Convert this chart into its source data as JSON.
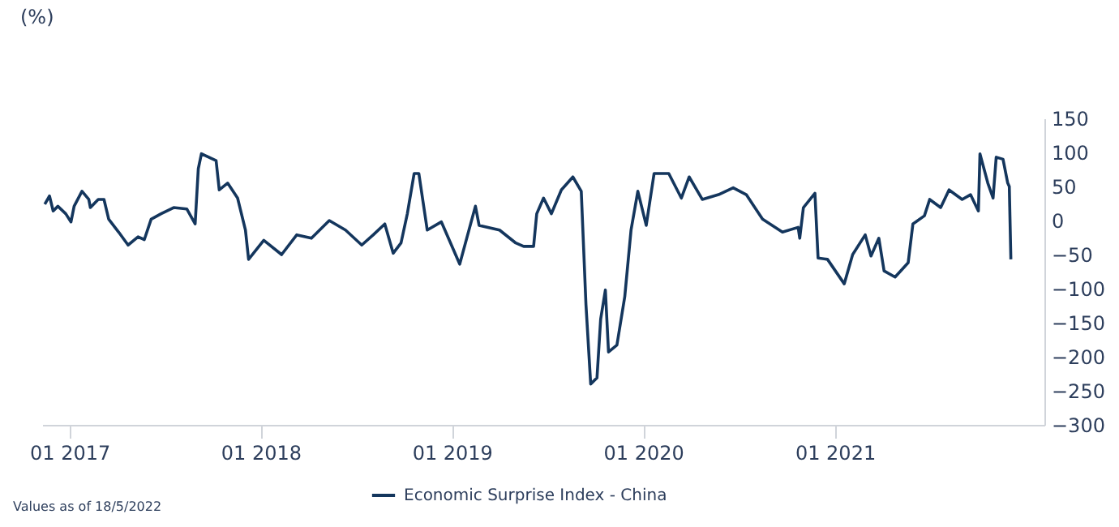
{
  "chart_data": {
    "type": "line",
    "ylabel": "(%)",
    "legend": "bottom",
    "grid": false,
    "annotations": [
      "Values as of 18/5/2022"
    ],
    "xlim": [
      "2016-11-10",
      "2022-02-05"
    ],
    "xticks": [
      {
        "value": "2017-01-01",
        "label": "01 2017"
      },
      {
        "value": "2018-01-01",
        "label": "01 2018"
      },
      {
        "value": "2019-01-01",
        "label": "01 2019"
      },
      {
        "value": "2020-01-01",
        "label": "01 2020"
      },
      {
        "value": "2021-01-01",
        "label": "01 2021"
      }
    ],
    "ylim": [
      -300,
      150
    ],
    "yticks": [
      -300,
      -250,
      -200,
      -150,
      -100,
      -50,
      0,
      50,
      100,
      150
    ],
    "x": [
      "2016-11-15",
      "2016-11-24",
      "2016-12-01",
      "2016-12-10",
      "2016-12-25",
      "2017-01-04",
      "2017-01-10",
      "2017-01-25",
      "2017-02-07",
      "2017-02-10",
      "2017-02-25",
      "2017-03-08",
      "2017-03-17",
      "2017-04-05",
      "2017-04-23",
      "2017-05-12",
      "2017-05-24",
      "2017-06-06",
      "2017-06-25",
      "2017-07-19",
      "2017-08-13",
      "2017-08-29",
      "2017-09-04",
      "2017-09-10",
      "2017-10-08",
      "2017-10-14",
      "2017-10-30",
      "2017-11-18",
      "2017-12-03",
      "2017-12-09",
      "2018-01-07",
      "2018-02-10",
      "2018-03-11",
      "2018-04-08",
      "2018-05-12",
      "2018-06-12",
      "2018-07-13",
      "2018-08-04",
      "2018-08-26",
      "2018-09-11",
      "2018-09-26",
      "2018-10-08",
      "2018-10-21",
      "2018-10-30",
      "2018-11-15",
      "2018-12-12",
      "2019-01-16",
      "2019-02-15",
      "2019-02-22",
      "2019-04-02",
      "2019-05-03",
      "2019-05-18",
      "2019-06-06",
      "2019-06-12",
      "2019-06-25",
      "2019-07-10",
      "2019-07-29",
      "2019-08-20",
      "2019-09-05",
      "2019-09-14",
      "2019-09-23",
      "2019-10-05",
      "2019-10-12",
      "2019-10-21",
      "2019-10-27",
      "2019-11-12",
      "2019-11-27",
      "2019-12-09",
      "2019-12-22",
      "2020-01-07",
      "2020-01-22",
      "2020-02-19",
      "2020-03-14",
      "2020-03-29",
      "2020-04-23",
      "2020-05-24",
      "2020-06-21",
      "2020-07-16",
      "2020-08-16",
      "2020-09-23",
      "2020-10-23",
      "2020-10-26",
      "2020-11-02",
      "2020-11-24",
      "2020-11-30",
      "2020-12-18",
      "2021-01-19",
      "2021-02-04",
      "2021-02-28",
      "2021-03-11",
      "2021-03-26",
      "2021-04-05",
      "2021-04-26",
      "2021-05-21",
      "2021-05-30",
      "2021-06-21",
      "2021-07-01",
      "2021-07-22",
      "2021-08-07",
      "2021-09-01",
      "2021-09-17",
      "2021-10-02",
      "2021-10-05",
      "2021-10-20",
      "2021-10-30",
      "2021-11-05",
      "2021-11-18",
      "2021-11-27",
      "2021-11-30",
      "2021-12-03"
    ],
    "series": [
      {
        "name": "Economic Surprise Index - China",
        "color": "#14365d",
        "values": [
          24,
          36,
          14,
          21,
          10,
          -2,
          21,
          43,
          31,
          19,
          31,
          31,
          2,
          -17,
          -36,
          -24,
          -28,
          2,
          10,
          19,
          17,
          -5,
          76,
          98,
          88,
          45,
          55,
          33,
          -14,
          -57,
          -29,
          -50,
          -21,
          -26,
          0,
          -14,
          -36,
          -21,
          -5,
          -48,
          -33,
          10,
          69,
          69,
          -14,
          -2,
          -64,
          21,
          -7,
          -14,
          -33,
          -38,
          -38,
          10,
          33,
          10,
          45,
          64,
          43,
          -124,
          -240,
          -231,
          -145,
          -102,
          -193,
          -183,
          -112,
          -14,
          43,
          -7,
          69,
          69,
          33,
          64,
          31,
          38,
          48,
          38,
          2,
          -17,
          -10,
          -26,
          19,
          40,
          -55,
          -57,
          -93,
          -50,
          -21,
          -52,
          -26,
          -74,
          -83,
          -62,
          -5,
          7,
          31,
          19,
          45,
          31,
          38,
          14,
          98,
          55,
          33,
          93,
          90,
          55,
          50,
          -57
        ]
      }
    ]
  }
}
